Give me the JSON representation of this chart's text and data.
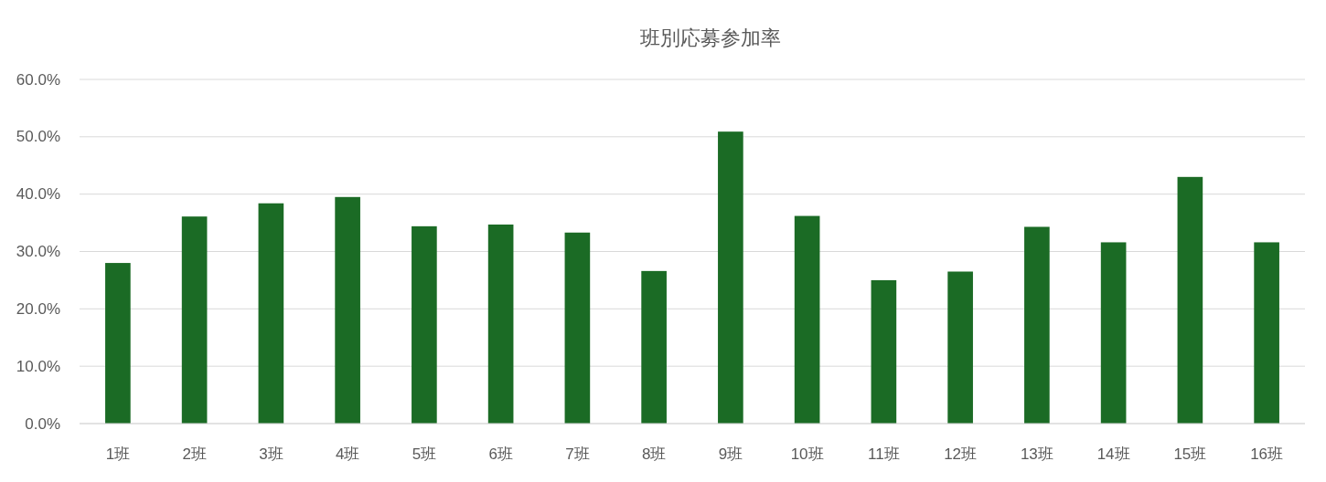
{
  "chart_data": {
    "type": "bar",
    "title": "班別応募参加率",
    "categories": [
      "1班",
      "2班",
      "3班",
      "4班",
      "5班",
      "6班",
      "7班",
      "8班",
      "9班",
      "10班",
      "11班",
      "12班",
      "13班",
      "14班",
      "15班",
      "16班"
    ],
    "values": [
      28.0,
      36.1,
      38.4,
      39.5,
      34.4,
      34.7,
      33.3,
      26.6,
      50.9,
      36.2,
      25.0,
      26.5,
      34.3,
      31.6,
      43.0,
      31.6
    ],
    "color": "#1b6b25",
    "ylim": [
      0,
      60
    ],
    "yticks": [
      {
        "value": 0,
        "label": "0.0%"
      },
      {
        "value": 10,
        "label": "10.0%"
      },
      {
        "value": 20,
        "label": "20.0%"
      },
      {
        "value": 30,
        "label": "30.0%"
      },
      {
        "value": 40,
        "label": "40.0%"
      },
      {
        "value": 50,
        "label": "50.0%"
      },
      {
        "value": 60,
        "label": "60.0%"
      }
    ],
    "grid": "y"
  }
}
